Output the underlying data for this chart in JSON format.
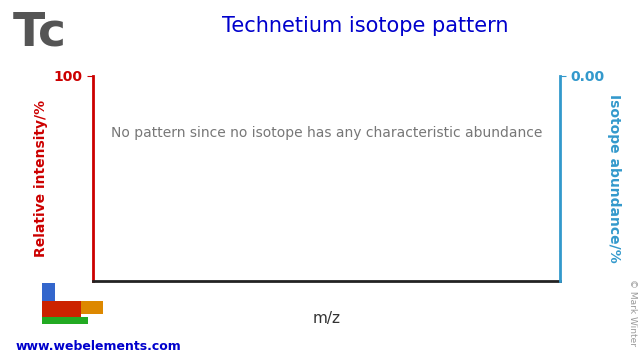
{
  "title": "Technetium isotope pattern",
  "element_symbol": "Tc",
  "xlabel": "m/z",
  "ylabel_left": "Relative intensity/%",
  "ylabel_right": "Isotope abundance/%",
  "annotation_text": "No pattern since no isotope has any characteristic abundance",
  "ylim": [
    0,
    100
  ],
  "left_axis_color": "#cc0000",
  "right_axis_color": "#3399cc",
  "title_color": "#0000cc",
  "element_color": "#555555",
  "annotation_color": "#777777",
  "background_color": "#ffffff",
  "copyright_text": "© Mark Winter",
  "website_text": "www.webelements.com",
  "website_color": "#0000cc",
  "right_ytick_label": "0.00",
  "left_ytick_label": "100",
  "logo_blue": "#3366cc",
  "logo_red": "#cc2200",
  "logo_orange": "#dd8800",
  "logo_green": "#22aa22"
}
